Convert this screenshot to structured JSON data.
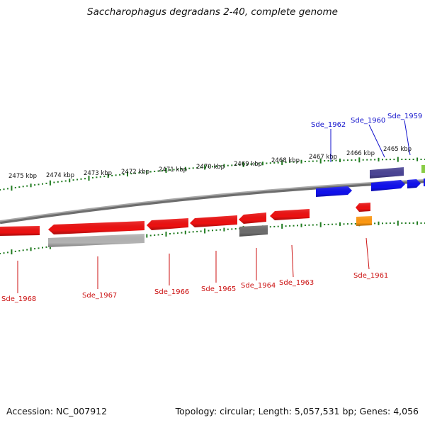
{
  "header": {
    "title": "Saccharophagus degradans 2-40, complete genome"
  },
  "footer": {
    "accession": "Accession: NC_007912",
    "summary": "Topology: circular; Length: 5,057,531 bp; Genes: 4,056"
  },
  "colors": {
    "backbone": "#8c8c8c",
    "tick": "#1e7a1e",
    "red_gene": "#ee1111",
    "blue_gene": "#1111ee",
    "purple_gene": "#4b4496",
    "grey_gene": "#6e6e6e",
    "light_grey_gene": "#b4b4b4",
    "orange_gene": "#ff9911",
    "green_gene": "#88cc44",
    "forward_label": "#1111cc",
    "reverse_label": "#cc1111"
  },
  "scale": {
    "labels": [
      "2475 kbp",
      "2474 kbp",
      "2473 kbp",
      "2472 kbp",
      "2471 kbp",
      "2470 kbp",
      "2469 kbp",
      "2468 kbp",
      "2467 kbp",
      "2466 kbp",
      "2465 kbp"
    ]
  },
  "genes": {
    "forward": [
      "Sde_1962",
      "Sde_1960",
      "Sde_1959"
    ],
    "reverse": [
      "Sde_1968",
      "Sde_1967",
      "Sde_1966",
      "Sde_1965",
      "Sde_1964",
      "Sde_1963",
      "Sde_1961"
    ]
  }
}
